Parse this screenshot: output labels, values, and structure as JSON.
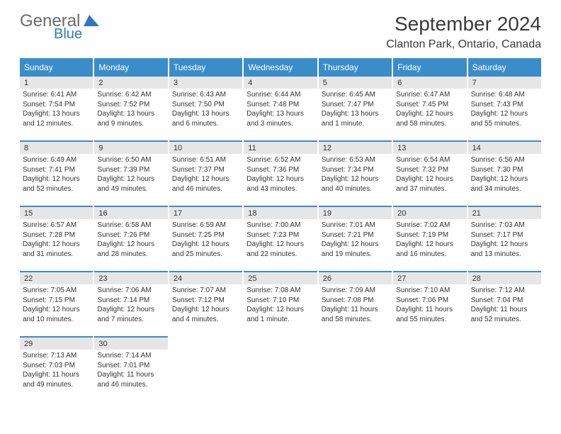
{
  "logo": {
    "general": "General",
    "blue": "Blue",
    "icon_color": "#2e79bd"
  },
  "header": {
    "title": "September 2024",
    "location": "Clanton Park, Ontario, Canada"
  },
  "day_names": [
    "Sunday",
    "Monday",
    "Tuesday",
    "Wednesday",
    "Thursday",
    "Friday",
    "Saturday"
  ],
  "colors": {
    "header_bg": "#3a8dc9",
    "header_text": "#ffffff",
    "daynum_bg": "#e6e6e6",
    "border": "#3a8dc9",
    "text": "#333333",
    "title_color": "#3a3a3a",
    "logo_gray": "#6a6a6a",
    "logo_blue": "#2e79bd",
    "background": "#ffffff"
  },
  "days": [
    {
      "n": "1",
      "sr": "Sunrise: 6:41 AM",
      "ss": "Sunset: 7:54 PM",
      "dl": "Daylight: 13 hours and 12 minutes."
    },
    {
      "n": "2",
      "sr": "Sunrise: 6:42 AM",
      "ss": "Sunset: 7:52 PM",
      "dl": "Daylight: 13 hours and 9 minutes."
    },
    {
      "n": "3",
      "sr": "Sunrise: 6:43 AM",
      "ss": "Sunset: 7:50 PM",
      "dl": "Daylight: 13 hours and 6 minutes."
    },
    {
      "n": "4",
      "sr": "Sunrise: 6:44 AM",
      "ss": "Sunset: 7:48 PM",
      "dl": "Daylight: 13 hours and 3 minutes."
    },
    {
      "n": "5",
      "sr": "Sunrise: 6:45 AM",
      "ss": "Sunset: 7:47 PM",
      "dl": "Daylight: 13 hours and 1 minute."
    },
    {
      "n": "6",
      "sr": "Sunrise: 6:47 AM",
      "ss": "Sunset: 7:45 PM",
      "dl": "Daylight: 12 hours and 58 minutes."
    },
    {
      "n": "7",
      "sr": "Sunrise: 6:48 AM",
      "ss": "Sunset: 7:43 PM",
      "dl": "Daylight: 12 hours and 55 minutes."
    },
    {
      "n": "8",
      "sr": "Sunrise: 6:49 AM",
      "ss": "Sunset: 7:41 PM",
      "dl": "Daylight: 12 hours and 52 minutes."
    },
    {
      "n": "9",
      "sr": "Sunrise: 6:50 AM",
      "ss": "Sunset: 7:39 PM",
      "dl": "Daylight: 12 hours and 49 minutes."
    },
    {
      "n": "10",
      "sr": "Sunrise: 6:51 AM",
      "ss": "Sunset: 7:37 PM",
      "dl": "Daylight: 12 hours and 46 minutes."
    },
    {
      "n": "11",
      "sr": "Sunrise: 6:52 AM",
      "ss": "Sunset: 7:36 PM",
      "dl": "Daylight: 12 hours and 43 minutes."
    },
    {
      "n": "12",
      "sr": "Sunrise: 6:53 AM",
      "ss": "Sunset: 7:34 PM",
      "dl": "Daylight: 12 hours and 40 minutes."
    },
    {
      "n": "13",
      "sr": "Sunrise: 6:54 AM",
      "ss": "Sunset: 7:32 PM",
      "dl": "Daylight: 12 hours and 37 minutes."
    },
    {
      "n": "14",
      "sr": "Sunrise: 6:56 AM",
      "ss": "Sunset: 7:30 PM",
      "dl": "Daylight: 12 hours and 34 minutes."
    },
    {
      "n": "15",
      "sr": "Sunrise: 6:57 AM",
      "ss": "Sunset: 7:28 PM",
      "dl": "Daylight: 12 hours and 31 minutes."
    },
    {
      "n": "16",
      "sr": "Sunrise: 6:58 AM",
      "ss": "Sunset: 7:26 PM",
      "dl": "Daylight: 12 hours and 28 minutes."
    },
    {
      "n": "17",
      "sr": "Sunrise: 6:59 AM",
      "ss": "Sunset: 7:25 PM",
      "dl": "Daylight: 12 hours and 25 minutes."
    },
    {
      "n": "18",
      "sr": "Sunrise: 7:00 AM",
      "ss": "Sunset: 7:23 PM",
      "dl": "Daylight: 12 hours and 22 minutes."
    },
    {
      "n": "19",
      "sr": "Sunrise: 7:01 AM",
      "ss": "Sunset: 7:21 PM",
      "dl": "Daylight: 12 hours and 19 minutes."
    },
    {
      "n": "20",
      "sr": "Sunrise: 7:02 AM",
      "ss": "Sunset: 7:19 PM",
      "dl": "Daylight: 12 hours and 16 minutes."
    },
    {
      "n": "21",
      "sr": "Sunrise: 7:03 AM",
      "ss": "Sunset: 7:17 PM",
      "dl": "Daylight: 12 hours and 13 minutes."
    },
    {
      "n": "22",
      "sr": "Sunrise: 7:05 AM",
      "ss": "Sunset: 7:15 PM",
      "dl": "Daylight: 12 hours and 10 minutes."
    },
    {
      "n": "23",
      "sr": "Sunrise: 7:06 AM",
      "ss": "Sunset: 7:14 PM",
      "dl": "Daylight: 12 hours and 7 minutes."
    },
    {
      "n": "24",
      "sr": "Sunrise: 7:07 AM",
      "ss": "Sunset: 7:12 PM",
      "dl": "Daylight: 12 hours and 4 minutes."
    },
    {
      "n": "25",
      "sr": "Sunrise: 7:08 AM",
      "ss": "Sunset: 7:10 PM",
      "dl": "Daylight: 12 hours and 1 minute."
    },
    {
      "n": "26",
      "sr": "Sunrise: 7:09 AM",
      "ss": "Sunset: 7:08 PM",
      "dl": "Daylight: 11 hours and 58 minutes."
    },
    {
      "n": "27",
      "sr": "Sunrise: 7:10 AM",
      "ss": "Sunset: 7:06 PM",
      "dl": "Daylight: 11 hours and 55 minutes."
    },
    {
      "n": "28",
      "sr": "Sunrise: 7:12 AM",
      "ss": "Sunset: 7:04 PM",
      "dl": "Daylight: 11 hours and 52 minutes."
    },
    {
      "n": "29",
      "sr": "Sunrise: 7:13 AM",
      "ss": "Sunset: 7:03 PM",
      "dl": "Daylight: 11 hours and 49 minutes."
    },
    {
      "n": "30",
      "sr": "Sunrise: 7:14 AM",
      "ss": "Sunset: 7:01 PM",
      "dl": "Daylight: 11 hours and 46 minutes."
    }
  ]
}
